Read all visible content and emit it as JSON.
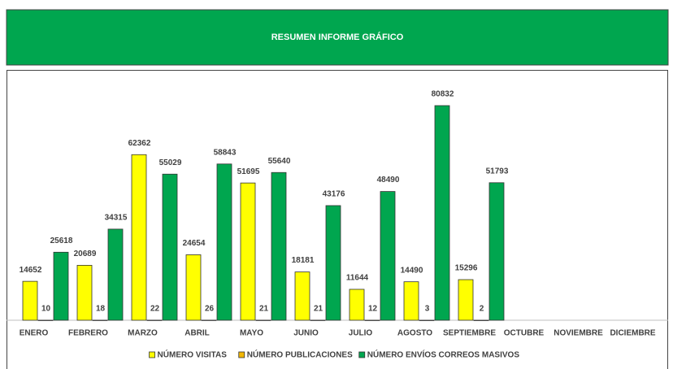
{
  "chart_data": {
    "type": "bar",
    "title": "RESUMEN INFORME GRÁFICO",
    "categories": [
      "ENERO",
      "FEBRERO",
      "MARZO",
      "ABRIL",
      "MAYO",
      "JUNIO",
      "JULIO",
      "AGOSTO",
      "SEPTIEMBRE",
      "OCTUBRE",
      "NOVIEMBRE",
      "DICIEMBRE"
    ],
    "series": [
      {
        "name": "NÚMERO VISITAS",
        "color": "#ffff00",
        "values": [
          14652,
          20689,
          62362,
          24654,
          51695,
          18181,
          11644,
          14490,
          15296,
          null,
          null,
          null
        ]
      },
      {
        "name": "NÚMERO PUBLICACIONES",
        "color": "#f2b705",
        "values": [
          10,
          18,
          22,
          26,
          21,
          21,
          12,
          3,
          2,
          null,
          null,
          null
        ]
      },
      {
        "name": "NÚMERO ENVÍOS CORREOS MASIVOS",
        "color": "#00a64f",
        "values": [
          25618,
          34315,
          55029,
          58843,
          55640,
          43176,
          48490,
          80832,
          51793,
          null,
          null,
          null
        ]
      }
    ],
    "ylim": [
      0,
      90000
    ],
    "legend": "bottom"
  }
}
